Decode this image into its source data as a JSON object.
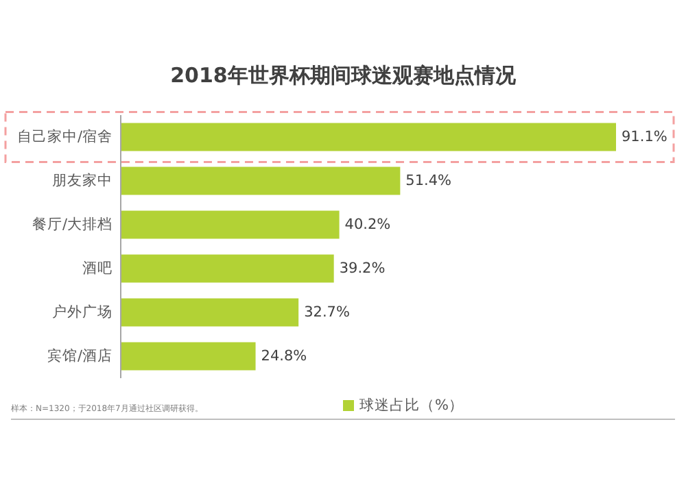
{
  "chart_data": {
    "type": "bar",
    "orientation": "horizontal",
    "title": "2018年世界杯期间球迷观赛地点情况",
    "categories": [
      "自己家中/宿舍",
      "朋友家中",
      "餐厅/大排档",
      "酒吧",
      "户外广场",
      "宾馆/酒店"
    ],
    "series": [
      {
        "name": "球迷占比（%）",
        "color": "#b2d235",
        "values": [
          91.1,
          51.4,
          40.2,
          39.2,
          32.7,
          24.8
        ],
        "value_labels": [
          "91.1%",
          "51.4%",
          "40.2%",
          "39.2%",
          "32.7%",
          "24.8%"
        ]
      }
    ],
    "legend": "bottom",
    "annotations": [
      "样本：N=1320；于2018年7月通过社区调研获得。"
    ]
  }
}
